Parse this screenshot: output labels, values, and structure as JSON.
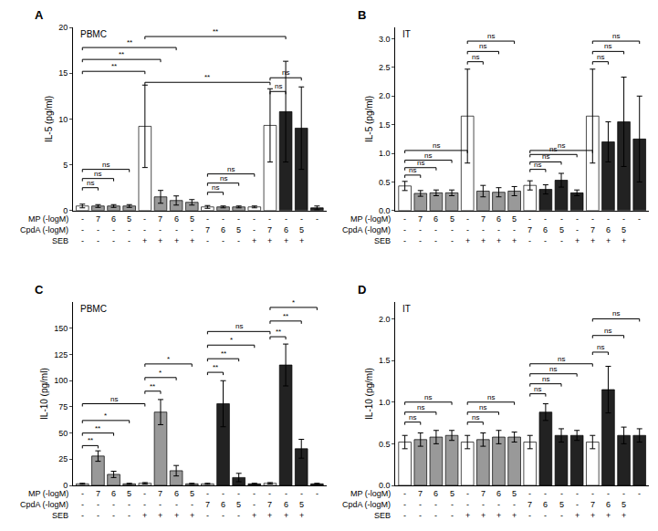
{
  "chart_data": [
    {
      "type": "bar",
      "title": "A",
      "subtitle": "PBMC",
      "ylabel": "IL-5 (pg/ml)",
      "xlabel": [
        "MP (-logM)",
        "CpdA (-logM)",
        "SEB"
      ],
      "categories": [
        [
          "-",
          "-",
          "-"
        ],
        [
          "7",
          "-",
          "-"
        ],
        [
          "6",
          "-",
          "-"
        ],
        [
          "5",
          "-",
          "-"
        ],
        [
          "-",
          "-",
          "+"
        ],
        [
          "7",
          "-",
          "+"
        ],
        [
          "6",
          "-",
          "+"
        ],
        [
          "5",
          "-",
          "+"
        ],
        [
          "-",
          "7",
          "-"
        ],
        [
          "-",
          "6",
          "-"
        ],
        [
          "-",
          "5",
          "-"
        ],
        [
          "-",
          "-",
          "+"
        ],
        [
          "-",
          "7",
          "+"
        ],
        [
          "-",
          "6",
          "+"
        ],
        [
          "-",
          "5",
          "+"
        ],
        [
          "-",
          "",
          ""
        ]
      ],
      "values": [
        0.5,
        0.5,
        0.5,
        0.5,
        9.2,
        1.5,
        1.1,
        0.9,
        0.4,
        0.4,
        0.4,
        0.4,
        9.3,
        10.8,
        9.0,
        0.3
      ],
      "errors": [
        0.2,
        0.15,
        0.15,
        0.15,
        4.5,
        0.7,
        0.5,
        0.3,
        0.15,
        0.1,
        0.1,
        0.1,
        4.0,
        5.5,
        4.5,
        0.2
      ],
      "colors": [
        "white",
        "#999999",
        "#999999",
        "#999999",
        "white",
        "#999999",
        "#999999",
        "#999999",
        "white",
        "#999999",
        "#999999",
        "white",
        "white",
        "#222222",
        "#222222",
        "#222222"
      ],
      "annotations": [
        {
          "text": "**",
          "x": [
            0,
            4
          ],
          "y": 15.2
        },
        {
          "text": "**",
          "x": [
            0,
            5
          ],
          "y": 16.5
        },
        {
          "text": "**",
          "x": [
            0,
            6
          ],
          "y": 17.8
        },
        {
          "text": "**",
          "x": [
            4,
            12
          ],
          "y": 14.0
        },
        {
          "text": "**",
          "x": [
            4,
            13
          ],
          "y": 19.0
        },
        {
          "text": "ns",
          "x": [
            0,
            1
          ],
          "y": 2.5
        },
        {
          "text": "ns",
          "x": [
            0,
            2
          ],
          "y": 3.5
        },
        {
          "text": "ns",
          "x": [
            0,
            3
          ],
          "y": 4.5
        },
        {
          "text": "ns",
          "x": [
            8,
            9
          ],
          "y": 2.0
        },
        {
          "text": "ns",
          "x": [
            8,
            10
          ],
          "y": 3.0
        },
        {
          "text": "ns",
          "x": [
            8,
            11
          ],
          "y": 4.0
        },
        {
          "text": "ns",
          "x": [
            12,
            13
          ],
          "y": 13.0
        },
        {
          "text": "ns",
          "x": [
            12,
            14
          ],
          "y": 14.5
        }
      ],
      "ylim": [
        0,
        20
      ],
      "yticks": [
        0,
        5,
        10,
        15,
        20
      ],
      "grid": false
    },
    {
      "type": "bar",
      "title": "B",
      "subtitle": "IT",
      "ylabel": "IL-5 (pg/ml)",
      "xlabel": [
        "MP (-logM)",
        "CpdA (-logM)",
        "SEB"
      ],
      "categories": [
        [
          "-",
          "-",
          "-"
        ],
        [
          "7",
          "-",
          "-"
        ],
        [
          "6",
          "-",
          "-"
        ],
        [
          "5",
          "-",
          "-"
        ],
        [
          "-",
          "-",
          "+"
        ],
        [
          "7",
          "-",
          "+"
        ],
        [
          "6",
          "-",
          "+"
        ],
        [
          "5",
          "-",
          "+"
        ],
        [
          "-",
          "7",
          "-"
        ],
        [
          "-",
          "6",
          "-"
        ],
        [
          "-",
          "5",
          "-"
        ],
        [
          "-",
          "-",
          "+"
        ],
        [
          "-",
          "7",
          "+"
        ],
        [
          "-",
          "6",
          "+"
        ],
        [
          "-",
          "5",
          "+"
        ],
        [
          "-",
          "",
          ""
        ]
      ],
      "values": [
        0.43,
        0.3,
        0.31,
        0.31,
        1.65,
        0.34,
        0.32,
        0.34,
        0.44,
        0.37,
        0.53,
        0.31,
        1.65,
        1.2,
        1.55,
        1.25
      ],
      "errors": [
        0.08,
        0.05,
        0.05,
        0.05,
        0.82,
        0.1,
        0.08,
        0.08,
        0.08,
        0.08,
        0.12,
        0.05,
        0.82,
        0.35,
        0.78,
        0.75
      ],
      "colors": [
        "white",
        "#999999",
        "#999999",
        "#999999",
        "white",
        "#999999",
        "#999999",
        "#999999",
        "white",
        "#222222",
        "#222222",
        "#222222",
        "white",
        "#222222",
        "#222222",
        "#222222"
      ],
      "annotations": [
        {
          "text": "ns",
          "x": [
            0,
            1
          ],
          "y": 0.62
        },
        {
          "text": "ns",
          "x": [
            0,
            2
          ],
          "y": 0.75
        },
        {
          "text": "ns",
          "x": [
            0,
            3
          ],
          "y": 0.88
        },
        {
          "text": "ns",
          "x": [
            4,
            5
          ],
          "y": 2.6
        },
        {
          "text": "ns",
          "x": [
            4,
            6
          ],
          "y": 2.78
        },
        {
          "text": "ns",
          "x": [
            4,
            7
          ],
          "y": 2.96
        },
        {
          "text": "ns",
          "x": [
            8,
            9
          ],
          "y": 0.72
        },
        {
          "text": "ns",
          "x": [
            8,
            10
          ],
          "y": 0.85
        },
        {
          "text": "ns",
          "x": [
            8,
            11
          ],
          "y": 0.98
        },
        {
          "text": "ns",
          "x": [
            12,
            13
          ],
          "y": 2.6
        },
        {
          "text": "ns",
          "x": [
            12,
            14
          ],
          "y": 2.78
        },
        {
          "text": "ns",
          "x": [
            12,
            15
          ],
          "y": 2.96
        },
        {
          "text": "ns",
          "x": [
            0,
            4
          ],
          "y": 1.05
        },
        {
          "text": "ns",
          "x": [
            8,
            12
          ],
          "y": 1.05
        }
      ],
      "ylim": [
        0,
        3.2
      ],
      "yticks": [
        {
          "value": 0.0,
          "label": "0.0"
        },
        0.5,
        {
          "value": 1.0,
          "label": "1.0"
        },
        1.5,
        {
          "value": 2.0,
          "label": "2.0"
        },
        2.5,
        {
          "value": 3.0,
          "label": "3.0"
        }
      ],
      "grid": false
    },
    {
      "type": "bar",
      "title": "C",
      "subtitle": "PBMC",
      "ylabel": "IL-10 (pg/ml)",
      "xlabel": [
        "MP (-logM)",
        "CpdA (-logM)",
        "SEB"
      ],
      "categories": [
        [
          "-",
          "-",
          "-"
        ],
        [
          "7",
          "-",
          "-"
        ],
        [
          "6",
          "-",
          "-"
        ],
        [
          "5",
          "-",
          "-"
        ],
        [
          "-",
          "-",
          "+"
        ],
        [
          "7",
          "-",
          "+"
        ],
        [
          "6",
          "-",
          "+"
        ],
        [
          "5",
          "-",
          "+"
        ],
        [
          "-",
          "7",
          "-"
        ],
        [
          "-",
          "6",
          "-"
        ],
        [
          "-",
          "5",
          "-"
        ],
        [
          "-",
          "-",
          "+"
        ],
        [
          "-",
          "7",
          "+"
        ],
        [
          "-",
          "6",
          "+"
        ],
        [
          "-",
          "5",
          "+"
        ],
        [
          "-",
          "",
          ""
        ]
      ],
      "values": [
        1.5,
        28.0,
        10.5,
        1.5,
        2.0,
        70.0,
        14.0,
        1.5,
        1.5,
        78.0,
        7.5,
        1.5,
        2.0,
        115.0,
        35.0,
        1.5
      ],
      "errors": [
        0.5,
        5.0,
        3.0,
        0.5,
        0.7,
        12.0,
        5.0,
        0.5,
        0.5,
        22.0,
        4.0,
        0.5,
        0.7,
        20.0,
        9.0,
        0.5
      ],
      "colors": [
        "white",
        "#999999",
        "#999999",
        "#999999",
        "white",
        "#999999",
        "#999999",
        "#999999",
        "white",
        "#222222",
        "#222222",
        "#222222",
        "white",
        "#222222",
        "#222222",
        "#222222"
      ],
      "annotations": [
        {
          "text": "**",
          "x": [
            0,
            1
          ],
          "y": 38.0
        },
        {
          "text": "**",
          "x": [
            0,
            2
          ],
          "y": 50.0
        },
        {
          "text": "*",
          "x": [
            0,
            3
          ],
          "y": 62.0
        },
        {
          "text": "ns",
          "x": [
            0,
            4
          ],
          "y": 78.0
        },
        {
          "text": "**",
          "x": [
            4,
            5
          ],
          "y": 90.0
        },
        {
          "text": "*",
          "x": [
            4,
            6
          ],
          "y": 103.0
        },
        {
          "text": "*",
          "x": [
            4,
            7
          ],
          "y": 116.0
        },
        {
          "text": "**",
          "x": [
            8,
            9
          ],
          "y": 108.0
        },
        {
          "text": "**",
          "x": [
            8,
            10
          ],
          "y": 121.0
        },
        {
          "text": "*",
          "x": [
            8,
            11
          ],
          "y": 134.0
        },
        {
          "text": "ns",
          "x": [
            8,
            12
          ],
          "y": 147.0
        },
        {
          "text": "**",
          "x": [
            12,
            13
          ],
          "y": 142.0
        },
        {
          "text": "**",
          "x": [
            12,
            14
          ],
          "y": 157.0
        },
        {
          "text": "*",
          "x": [
            12,
            15
          ],
          "y": 170.0
        }
      ],
      "ylim": [
        0,
        175
      ],
      "yticks": [
        0,
        25,
        50,
        75,
        100,
        125,
        150
      ],
      "grid": false
    },
    {
      "type": "bar",
      "title": "D",
      "subtitle": "IT",
      "ylabel": "IL-10 (pg/ml)",
      "xlabel": [
        "MP (-logM)",
        "CpdA (-logM)",
        "SEB"
      ],
      "categories": [
        [
          "-",
          "-",
          "-"
        ],
        [
          "7",
          "-",
          "-"
        ],
        [
          "6",
          "-",
          "-"
        ],
        [
          "5",
          "-",
          "-"
        ],
        [
          "-",
          "-",
          "+"
        ],
        [
          "7",
          "-",
          "+"
        ],
        [
          "6",
          "-",
          "+"
        ],
        [
          "5",
          "-",
          "+"
        ],
        [
          "-",
          "7",
          "-"
        ],
        [
          "-",
          "6",
          "-"
        ],
        [
          "-",
          "5",
          "-"
        ],
        [
          "-",
          "-",
          "+"
        ],
        [
          "-",
          "7",
          "+"
        ],
        [
          "-",
          "6",
          "+"
        ],
        [
          "-",
          "5",
          "+"
        ],
        [
          "-",
          "",
          ""
        ]
      ],
      "values": [
        0.52,
        0.55,
        0.58,
        0.6,
        0.52,
        0.55,
        0.58,
        0.58,
        0.52,
        0.88,
        0.6,
        0.6,
        0.52,
        1.15,
        0.6,
        0.6
      ],
      "errors": [
        0.08,
        0.08,
        0.08,
        0.06,
        0.08,
        0.08,
        0.08,
        0.06,
        0.08,
        0.1,
        0.08,
        0.06,
        0.08,
        0.28,
        0.1,
        0.08
      ],
      "colors": [
        "white",
        "#999999",
        "#999999",
        "#999999",
        "white",
        "#999999",
        "#999999",
        "#999999",
        "white",
        "#222222",
        "#222222",
        "#222222",
        "white",
        "#222222",
        "#222222",
        "#222222"
      ],
      "annotations": [
        {
          "text": "ns",
          "x": [
            0,
            1
          ],
          "y": 0.76
        },
        {
          "text": "ns",
          "x": [
            0,
            2
          ],
          "y": 0.88
        },
        {
          "text": "ns",
          "x": [
            0,
            3
          ],
          "y": 1.0
        },
        {
          "text": "ns",
          "x": [
            4,
            5
          ],
          "y": 0.76
        },
        {
          "text": "ns",
          "x": [
            4,
            6
          ],
          "y": 0.88
        },
        {
          "text": "ns",
          "x": [
            4,
            7
          ],
          "y": 1.0
        },
        {
          "text": "ns",
          "x": [
            8,
            9
          ],
          "y": 1.1
        },
        {
          "text": "ns",
          "x": [
            8,
            10
          ],
          "y": 1.22
        },
        {
          "text": "ns",
          "x": [
            8,
            11
          ],
          "y": 1.34
        },
        {
          "text": "ns",
          "x": [
            8,
            12
          ],
          "y": 1.46
        },
        {
          "text": "ns",
          "x": [
            12,
            13
          ],
          "y": 1.6
        },
        {
          "text": "ns",
          "x": [
            12,
            14
          ],
          "y": 1.8
        },
        {
          "text": "ns",
          "x": [
            12,
            15
          ],
          "y": 2.0
        }
      ],
      "ylim": [
        0,
        2.2
      ],
      "yticks": [
        {
          "value": 0.0,
          "label": "0.0"
        },
        0.5,
        {
          "value": 1.0,
          "label": "1.0"
        },
        1.5,
        {
          "value": 2.0,
          "label": "2.0"
        }
      ],
      "grid": false
    }
  ]
}
